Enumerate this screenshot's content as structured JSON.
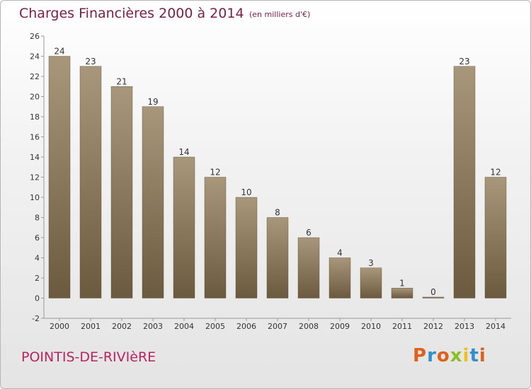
{
  "header": {
    "title": "Charges Financières 2000 à 2014",
    "subtitle": "(en milliers d'€)"
  },
  "footer": {
    "commune": "POINTIS-DE-RIVIèRE",
    "logo_text": "Proxiti"
  },
  "colors": {
    "bar_top": "#a8977a",
    "bar_bottom": "#6c5a3e",
    "title": "#7b1f44",
    "logo": [
      "#e0601b",
      "#2f8fd0",
      "#e0601b",
      "#8cbf26",
      "#f0c020",
      "#2f8fd0",
      "#e0601b"
    ]
  },
  "chart_data": {
    "type": "bar",
    "title": "Charges Financières 2000 à 2014",
    "subtitle": "(en milliers d'€)",
    "categories": [
      "2000",
      "2001",
      "2002",
      "2003",
      "2004",
      "2005",
      "2006",
      "2007",
      "2008",
      "2009",
      "2010",
      "2011",
      "2012",
      "2013",
      "2014"
    ],
    "values": [
      24,
      23,
      21,
      19,
      14,
      12,
      10,
      8,
      6,
      4,
      3,
      1,
      0,
      23,
      12
    ],
    "value_labels": [
      "24",
      "23",
      "21",
      "19",
      "14",
      "12",
      "10",
      "8",
      "6",
      "4",
      "3",
      "1",
      "0",
      "23",
      "12"
    ],
    "yticks": [
      "-2",
      "0",
      "2",
      "4",
      "6",
      "8",
      "10",
      "12",
      "14",
      "16",
      "18",
      "20",
      "22",
      "24",
      "26"
    ],
    "ylim": [
      -2,
      26
    ],
    "grid": false,
    "xlabel": "",
    "ylabel": ""
  }
}
